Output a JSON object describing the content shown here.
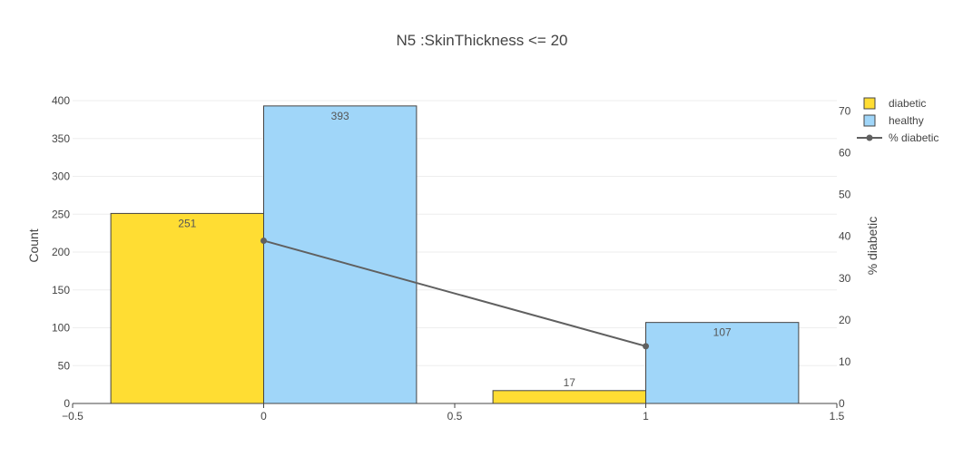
{
  "chart_data": {
    "type": "bar",
    "title": "N5 :SkinThickness <= 20",
    "xlabel": "",
    "ylabel": "Count",
    "y2label": "% diabetic",
    "xlim": [
      -0.5,
      1.5
    ],
    "ylim": [
      0,
      400
    ],
    "y2lim": [
      0,
      72.5
    ],
    "xticks": [
      "−0.5",
      "0",
      "0.5",
      "1",
      "1.5"
    ],
    "yticks": [
      "0",
      "50",
      "100",
      "150",
      "200",
      "250",
      "300",
      "350",
      "400"
    ],
    "y2ticks": [
      "0",
      "10",
      "20",
      "30",
      "40",
      "50",
      "60",
      "70"
    ],
    "x": [
      0,
      1
    ],
    "series": [
      {
        "name": "diabetic",
        "kind": "bar",
        "values": [
          251,
          17
        ],
        "labels": [
          "251",
          "17"
        ],
        "color": "#FFDD33"
      },
      {
        "name": "healthy",
        "kind": "bar",
        "values": [
          393,
          107
        ],
        "labels": [
          "393",
          "107"
        ],
        "color": "#A0D6F9"
      },
      {
        "name": "% diabetic",
        "kind": "line",
        "axis": "y2",
        "values": [
          38.97,
          13.71
        ],
        "color": "#606060"
      }
    ],
    "legend_position": "top-right",
    "grid": true
  }
}
